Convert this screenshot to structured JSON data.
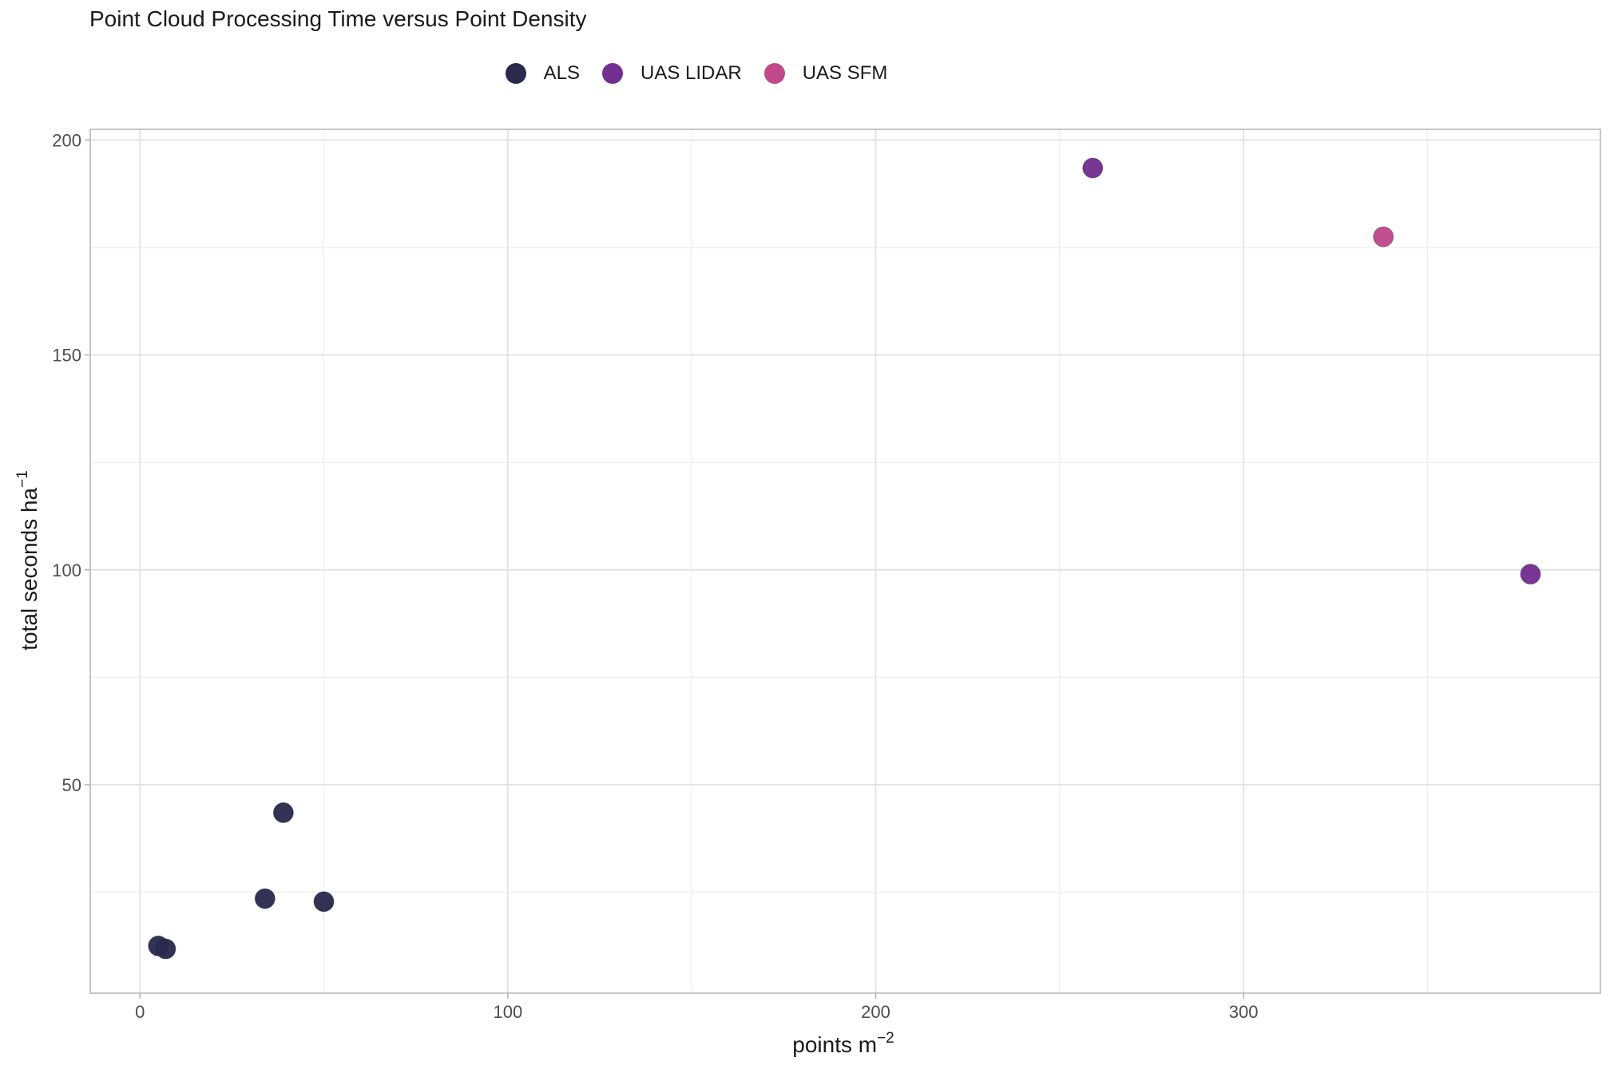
{
  "chart_data": {
    "type": "scatter",
    "title": "Point Cloud Processing Time versus Point Density",
    "xlabel": "points m",
    "xlabel_sup": "−2",
    "ylabel": "total seconds ha",
    "ylabel_sup": "−1",
    "xlim": [
      -13.5,
      397
    ],
    "ylim": [
      1.5,
      202.5
    ],
    "x_ticks": [
      0,
      100,
      200,
      300
    ],
    "x_minor": [
      50,
      150,
      250,
      350
    ],
    "y_ticks": [
      50,
      100,
      150,
      200
    ],
    "y_minor": [
      25,
      75,
      125,
      175
    ],
    "grid": true,
    "legend_position": "top",
    "series": [
      {
        "name": "ALS",
        "color": "#2a2a4e",
        "points": [
          [
            5,
            12.5
          ],
          [
            7,
            11.8
          ],
          [
            34,
            23.5
          ],
          [
            39,
            43.5
          ],
          [
            50,
            22.8
          ]
        ]
      },
      {
        "name": "UAS LIDAR",
        "color": "#722f91",
        "points": [
          [
            259,
            193.5
          ],
          [
            378,
            99
          ]
        ]
      },
      {
        "name": "UAS SFM",
        "color": "#c0498a",
        "points": [
          [
            338,
            177.5
          ]
        ]
      }
    ]
  }
}
